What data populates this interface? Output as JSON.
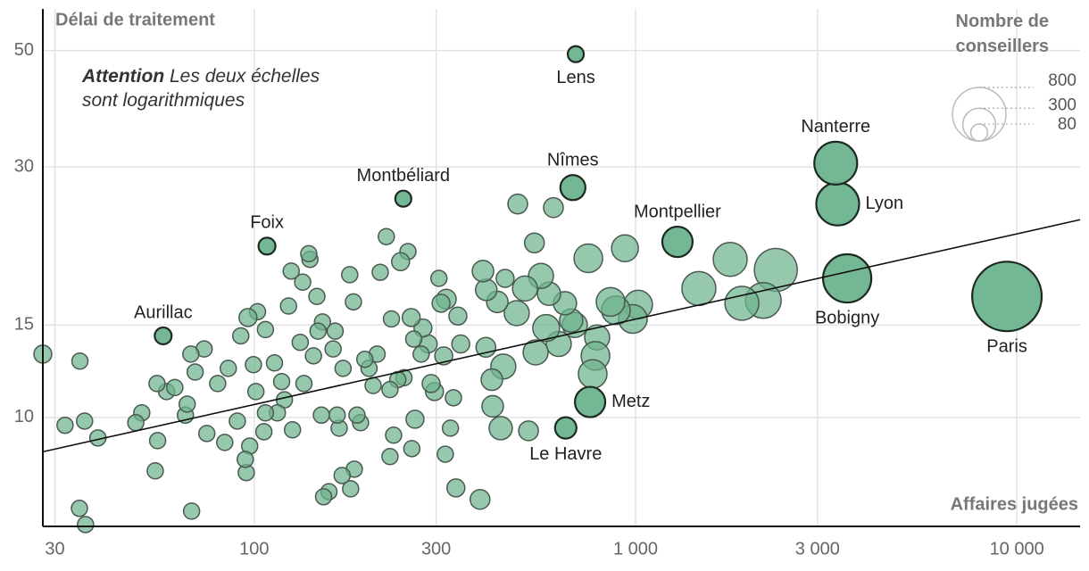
{
  "chart_data": {
    "type": "scatter",
    "y_label": "Délai de traitement",
    "x_label": "Affaires jugées",
    "note_bold": "Attention",
    "note": "Les deux échelles sont logarithmiques",
    "size_title": "Nombre de conseillers",
    "size_legend": [
      800,
      300,
      80
    ],
    "x_log": true,
    "y_log": true,
    "grid": true,
    "xlim": [
      27.9,
      14650
    ],
    "ylim": [
      6.2,
      60
    ],
    "xticks": [
      30,
      100,
      300,
      {
        "value": 1000,
        "label": "1 000"
      },
      {
        "value": 3000,
        "label": "3 000"
      },
      {
        "value": 10000,
        "label": "10 000"
      }
    ],
    "yticks": [
      10,
      15,
      30,
      50
    ],
    "trend": {
      "x": [
        27.9,
        14650
      ],
      "y": [
        8.6,
        23.8
      ],
      "color": "#111"
    },
    "series": [
      {
        "color": "#6db38e",
        "labels": [
          "Lens",
          "Nîmes",
          "Montbéliard",
          "Foix",
          "Aurillac",
          "Montpellier",
          "Nanterre",
          "Lyon",
          "Bobigny",
          "Paris",
          "Metz",
          "Le Havre",
          null,
          null,
          null,
          null,
          null,
          null,
          null,
          null,
          null,
          null,
          null,
          null,
          null,
          null,
          null,
          null,
          null,
          null,
          null,
          null,
          null,
          null,
          null,
          null,
          null,
          null,
          null,
          null,
          null,
          null,
          null,
          null,
          null,
          null,
          null,
          null,
          null,
          null,
          null,
          null,
          null,
          null,
          null,
          null,
          null,
          null,
          null,
          null,
          null,
          null,
          null,
          null,
          null,
          null,
          null,
          null,
          null,
          null,
          null,
          null,
          null,
          null,
          null,
          null,
          null,
          null,
          null,
          null,
          null,
          null,
          null,
          null,
          null,
          null,
          null,
          null,
          null,
          null,
          null,
          null,
          null,
          null,
          null,
          null,
          null,
          null,
          null,
          null,
          null,
          null,
          null,
          null,
          null,
          null,
          null,
          null,
          null,
          null,
          null,
          null,
          null,
          null,
          null,
          null,
          null,
          null,
          null,
          null,
          null,
          null,
          null,
          null,
          null,
          null,
          null,
          null,
          null,
          null,
          null,
          null,
          null,
          null,
          null,
          null,
          null,
          null,
          null,
          null,
          null,
          null,
          null,
          null,
          null,
          null,
          null,
          null,
          null,
          null
        ],
        "x": [
          697,
          685,
          246,
          108,
          57.7,
          1288,
          3350,
          3390,
          3590,
          9420,
          760,
          656,
          27.9,
          31.9,
          35.9,
          34.9,
          38.9,
          34.8,
          36.1,
          48.9,
          50.7,
          55.6,
          55.0,
          55.8,
          61.9,
          58.9,
          66.7,
          66.0,
          68.5,
          68.2,
          70.0,
          73.9,
          75.1,
          80.2,
          83.7,
          85.5,
          90.3,
          92.2,
          94.7,
          95.3,
          97.3,
          99.5,
          101,
          96.3,
          102,
          107,
          107,
          106,
          113,
          115,
          118,
          120,
          123,
          125,
          126,
          132,
          134,
          139,
          140,
          135,
          143,
          146,
          147,
          151,
          150,
          152,
          157,
          161,
          163,
          165,
          167,
          171,
          170,
          178,
          179,
          183,
          182,
          186,
          190,
          195,
          200,
          205,
          210,
          214,
          222,
          227,
          229,
          227,
          232,
          238,
          242,
          247,
          253,
          258,
          259,
          262,
          264,
          274,
          277,
          286,
          291,
          297,
          305,
          309,
          314,
          319,
          327,
          333,
          317,
          342,
          348,
          338,
          391,
          398,
          406,
          422,
          405,
          420,
          434,
          443,
          450,
          455,
          491,
          488,
          513,
          524,
          543,
          547,
          565,
          583,
          593,
          609,
          629,
          653,
          678,
          693,
          752,
          772,
          785,
          793,
          860,
          888,
          938,
          984,
          1016,
          1466,
          1771,
          1901,
          2163,
          2333
        ],
        "values": [
          49.2,
          27.4,
          26.1,
          21.2,
          14.3,
          21.6,
          30.5,
          25.5,
          18.4,
          17.0,
          10.7,
          9.55,
          13.2,
          9.66,
          9.84,
          12.8,
          9.14,
          6.71,
          6.25,
          9.77,
          10.2,
          11.6,
          7.91,
          9.03,
          11.4,
          11.2,
          10.6,
          10.1,
          6.63,
          13.2,
          12.2,
          13.5,
          9.32,
          11.6,
          8.96,
          12.4,
          9.84,
          14.3,
          8.32,
          7.85,
          8.82,
          12.6,
          11.2,
          15.5,
          15.9,
          14.7,
          10.2,
          9.39,
          12.7,
          10.2,
          11.7,
          10.8,
          16.3,
          19.0,
          9.47,
          13.9,
          18.1,
          20.5,
          20.0,
          11.6,
          13.1,
          17.0,
          14.6,
          15.2,
          10.1,
          7.06,
          7.22,
          13.5,
          14.6,
          10.1,
          9.54,
          12.4,
          7.75,
          18.7,
          7.31,
          7.97,
          16.6,
          10.1,
          9.77,
          12.9,
          12.4,
          11.5,
          13.2,
          18.9,
          22.1,
          11.3,
          15.4,
          8.42,
          9.25,
          11.8,
          19.8,
          11.9,
          20.7,
          15.5,
          8.72,
          14.1,
          9.92,
          13.2,
          14.8,
          13.8,
          11.6,
          11.2,
          18.4,
          16.5,
          13.1,
          16.8,
          9.54,
          10.9,
          8.51,
          15.6,
          13.8,
          7.34,
          6.98,
          19.0,
          17.5,
          10.5,
          13.6,
          11.8,
          16.6,
          9.54,
          12.5,
          18.4,
          25.5,
          15.8,
          17.6,
          9.43,
          21.5,
          13.3,
          18.6,
          14.8,
          17.2,
          25.1,
          13.8,
          16.5,
          15.3,
          15.0,
          20.1,
          12.1,
          13.1,
          14.2,
          16.6,
          16.0,
          21.0,
          15.4,
          16.4,
          17.6,
          20.0,
          16.5,
          16.7,
          19.1
        ],
        "sizes": [
          72,
          175,
          72,
          80,
          80,
          257,
          513,
          513,
          650,
          1350,
          257,
          128,
          89,
          72,
          72,
          72,
          72,
          72,
          72,
          72,
          72,
          72,
          72,
          72,
          72,
          72,
          72,
          72,
          72,
          72,
          72,
          72,
          72,
          72,
          72,
          72,
          72,
          72,
          72,
          72,
          72,
          72,
          72,
          89,
          72,
          72,
          72,
          72,
          72,
          72,
          72,
          72,
          72,
          72,
          72,
          72,
          72,
          72,
          72,
          72,
          72,
          72,
          72,
          72,
          72,
          72,
          72,
          72,
          72,
          72,
          72,
          72,
          72,
          72,
          72,
          72,
          72,
          72,
          72,
          72,
          72,
          72,
          72,
          72,
          72,
          72,
          72,
          72,
          72,
          72,
          89,
          72,
          72,
          89,
          72,
          72,
          89,
          72,
          89,
          89,
          89,
          89,
          72,
          89,
          89,
          108,
          72,
          72,
          72,
          89,
          89,
          89,
          108,
          128,
          128,
          128,
          108,
          128,
          128,
          150,
          174,
          89,
          108,
          174,
          174,
          108,
          108,
          174,
          174,
          200,
          150,
          108,
          174,
          150,
          150,
          174,
          228,
          228,
          228,
          174,
          228,
          228,
          200,
          228,
          228,
          321,
          321,
          321,
          356,
          513
        ]
      }
    ]
  }
}
